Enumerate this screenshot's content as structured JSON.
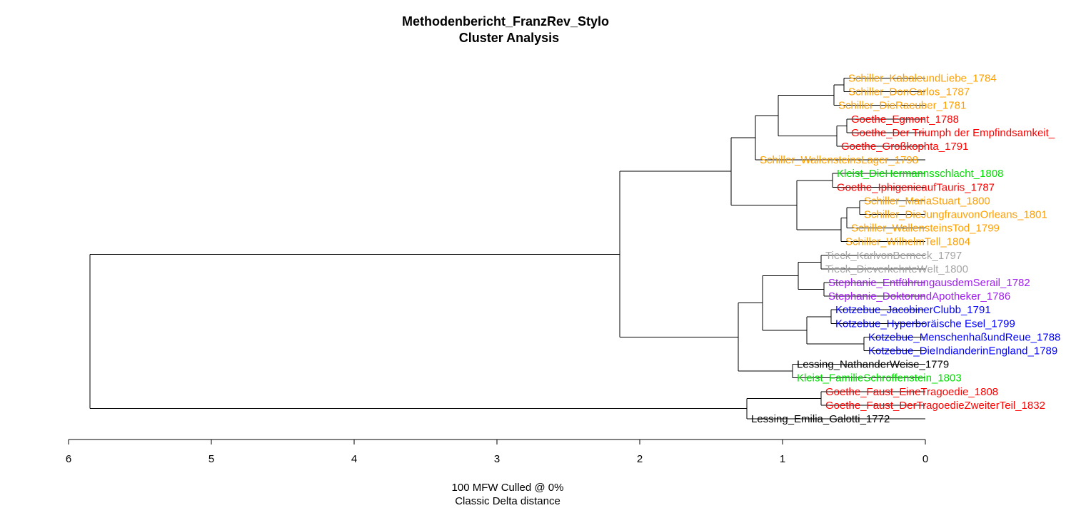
{
  "chart_data": {
    "type": "dendrogram",
    "title": "Methodenbericht_FranzRev_Stylo",
    "subtitle": "Cluster Analysis",
    "xlabel_line1": "100 MFW  Culled @ 0%",
    "xlabel_line2": "Classic Delta distance",
    "xlim": [
      6,
      0
    ],
    "x_ticks": [
      "6",
      "5",
      "4",
      "3",
      "2",
      "1",
      "0"
    ],
    "colors": {
      "Schiller": "#ff9f00",
      "Goethe": "#ff0000",
      "Kleist": "#00e000",
      "Tieck": "#a6a6a6",
      "Stephanie": "#a020f0",
      "Kotzebue": "#0000ff",
      "Lessing": "#000000"
    },
    "leaves": [
      {
        "label": "Schiller_KabaleundLiebe_1784",
        "author": "Schiller",
        "height": 0.57
      },
      {
        "label": "Schiller_DonCarlos_1787",
        "author": "Schiller",
        "height": 0.57
      },
      {
        "label": "Schiller_DieRaeuber_1781",
        "author": "Schiller",
        "height": 0.64
      },
      {
        "label": "Goethe_Egmont_1788",
        "author": "Goethe",
        "height": 0.55
      },
      {
        "label": "Goethe_Der Triumph der Empfindsamkeit_",
        "author": "Goethe",
        "height": 0.55
      },
      {
        "label": "Goethe_Großkophta_1791",
        "author": "Goethe",
        "height": 0.62
      },
      {
        "label": "Schiller_WallensteinsLager_1798",
        "author": "Schiller",
        "height": 1.19
      },
      {
        "label": "Kleist_DieHermannsschlacht_1808",
        "author": "Kleist",
        "height": 0.65
      },
      {
        "label": "Goethe_IphigenieaufTauris_1787",
        "author": "Goethe",
        "height": 0.65
      },
      {
        "label": "Schiller_MariaStuart_1800",
        "author": "Schiller",
        "height": 0.46
      },
      {
        "label": "Schiller_DieJungfrauvonOrleans_1801",
        "author": "Schiller",
        "height": 0.46
      },
      {
        "label": "Schiller_WallensteinsTod_1799",
        "author": "Schiller",
        "height": 0.55
      },
      {
        "label": "Schiller_WilhelmTell_1804",
        "author": "Schiller",
        "height": 0.59
      },
      {
        "label": "Tieck_KarlvonBerneck_1797",
        "author": "Tieck",
        "height": 0.73
      },
      {
        "label": "Tieck_DieverkehrteWelt_1800",
        "author": "Tieck",
        "height": 0.73
      },
      {
        "label": "Stephanie_EntführungausdemSerail_1782",
        "author": "Stephanie",
        "height": 0.71
      },
      {
        "label": "Stephanie_DoktorundApotheker_1786",
        "author": "Stephanie",
        "height": 0.71
      },
      {
        "label": "Kotzebue_JacobinerClubb_1791",
        "author": "Kotzebue",
        "height": 0.66
      },
      {
        "label": "Kotzebue_Hyperboräische Esel_1799",
        "author": "Kotzebue",
        "height": 0.66
      },
      {
        "label": "Kotzebue_MenschenhaßundReue_1788",
        "author": "Kotzebue",
        "height": 0.43
      },
      {
        "label": "Kotzebue_DieIndianderinEngland_1789",
        "author": "Kotzebue",
        "height": 0.43
      },
      {
        "label": "Lessing_NathanderWeise_1779",
        "author": "Lessing",
        "height": 0.93
      },
      {
        "label": "Kleist_FamilieSchroffenstein_1803",
        "author": "Kleist",
        "height": 0.93
      },
      {
        "label": "Goethe_Faust_EineTragoedie_1808",
        "author": "Goethe",
        "height": 0.73
      },
      {
        "label": "Goethe_Faust_DerTragoedieZweiterTeil_1832",
        "author": "Goethe",
        "height": 0.73
      },
      {
        "label": "Lessing_Emilia_Galotti_1772",
        "author": "Lessing",
        "height": 1.25
      }
    ],
    "merges": [
      {
        "a": 0,
        "b": 1,
        "height": 0.57
      },
      {
        "a": 0,
        "b": 2,
        "height": 0.64
      },
      {
        "a": 3,
        "b": 4,
        "height": 0.55
      },
      {
        "a": 3,
        "b": 5,
        "height": 0.62
      },
      {
        "a": 0,
        "b": 3,
        "height": 1.03
      },
      {
        "a": 0,
        "b": 6,
        "height": 1.19
      },
      {
        "a": 7,
        "b": 8,
        "height": 0.65
      },
      {
        "a": 9,
        "b": 10,
        "height": 0.46
      },
      {
        "a": 9,
        "b": 11,
        "height": 0.55
      },
      {
        "a": 9,
        "b": 12,
        "height": 0.59
      },
      {
        "a": 7,
        "b": 9,
        "height": 0.9
      },
      {
        "a": 0,
        "b": 7,
        "height": 1.36
      },
      {
        "a": 13,
        "b": 14,
        "height": 0.73
      },
      {
        "a": 15,
        "b": 16,
        "height": 0.71
      },
      {
        "a": 13,
        "b": 15,
        "height": 0.89
      },
      {
        "a": 17,
        "b": 18,
        "height": 0.66
      },
      {
        "a": 19,
        "b": 20,
        "height": 0.43
      },
      {
        "a": 17,
        "b": 19,
        "height": 0.83
      },
      {
        "a": 13,
        "b": 17,
        "height": 1.14
      },
      {
        "a": 21,
        "b": 22,
        "height": 0.93
      },
      {
        "a": 13,
        "b": 21,
        "height": 1.31
      },
      {
        "a": 0,
        "b": 13,
        "height": 2.14
      },
      {
        "a": 23,
        "b": 24,
        "height": 0.73
      },
      {
        "a": 23,
        "b": 25,
        "height": 1.25
      },
      {
        "a": 0,
        "b": 23,
        "height": 5.85
      }
    ]
  }
}
